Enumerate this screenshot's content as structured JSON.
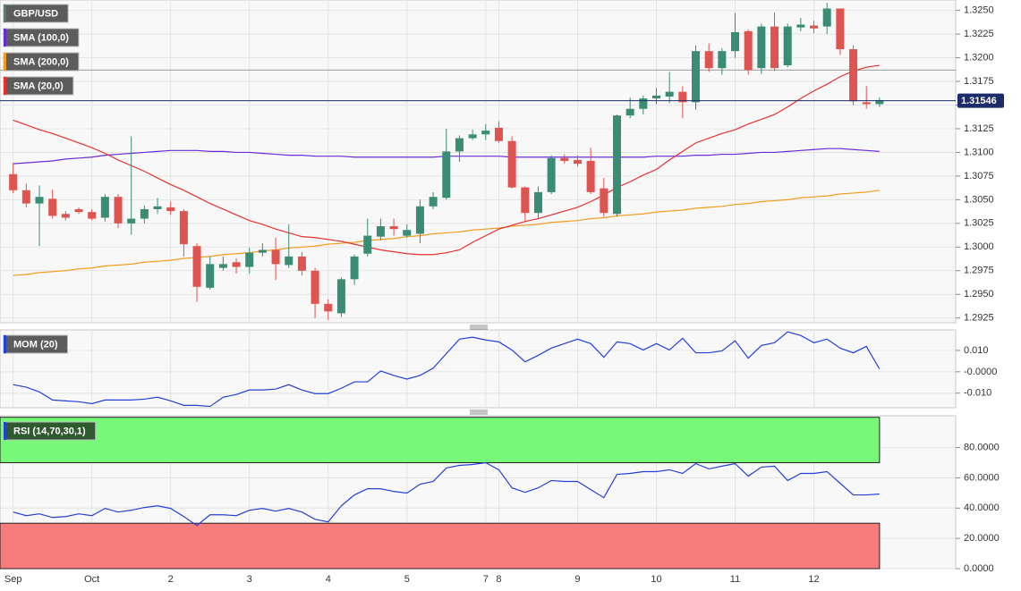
{
  "chart_data": [
    {
      "type": "candlestick",
      "name": "GBP/USD",
      "categories": [
        "Sep",
        null,
        null,
        null,
        null,
        null,
        "Oct",
        null,
        null,
        null,
        null,
        null,
        "2",
        null,
        null,
        null,
        null,
        null,
        "3",
        null,
        null,
        null,
        null,
        null,
        "4",
        null,
        null,
        null,
        null,
        null,
        "5",
        null,
        null,
        null,
        null,
        null,
        "7",
        "8",
        null,
        null,
        null,
        null,
        null,
        "9",
        null,
        null,
        null,
        null,
        null,
        "10",
        null,
        null,
        null,
        null,
        null,
        "11",
        null,
        null,
        null,
        null,
        null,
        "12",
        null,
        null,
        null,
        null,
        null
      ],
      "open": [
        1.3077,
        1.306,
        1.3046,
        1.3051,
        1.3035,
        1.304,
        1.3037,
        1.3031,
        1.3053,
        1.3025,
        1.303,
        1.304,
        1.3042,
        1.3038,
        1.3001,
        1.2957,
        1.2978,
        1.2984,
        1.2979,
        1.2994,
        1.2997,
        1.2981,
        1.299,
        1.2975,
        1.294,
        1.293,
        1.2966,
        1.2993,
        1.3011,
        1.3022,
        1.3012,
        1.3014,
        1.3043,
        1.3052,
        1.3101,
        1.3115,
        1.3119,
        1.3126,
        1.3112,
        1.3063,
        1.3036,
        1.3058,
        1.3094,
        1.3092,
        1.3091,
        1.3062,
        1.3035,
        1.3139,
        1.3146,
        1.3157,
        1.3159,
        1.3164,
        1.3153,
        1.3207,
        1.3189,
        1.3207,
        1.3228,
        1.3189,
        1.3233,
        1.3192,
        1.3232,
        1.3234,
        1.3233,
        1.3252,
        1.3209,
        1.3153,
        1.3151
      ],
      "high": [
        1.3089,
        1.3067,
        1.3065,
        1.3061,
        1.3038,
        1.3042,
        1.304,
        1.3056,
        1.3056,
        1.3117,
        1.3044,
        1.3052,
        1.3048,
        1.304,
        1.3004,
        1.299,
        1.299,
        1.2988,
        1.2999,
        1.3004,
        1.301,
        1.3024,
        1.2995,
        1.2978,
        1.2945,
        1.2968,
        1.2992,
        1.303,
        1.303,
        1.303,
        1.3024,
        1.305,
        1.3058,
        1.3125,
        1.3118,
        1.3124,
        1.313,
        1.3133,
        1.3117,
        1.3064,
        1.3064,
        1.3097,
        1.3098,
        1.3097,
        1.3105,
        1.3073,
        1.314,
        1.3158,
        1.316,
        1.3168,
        1.3185,
        1.317,
        1.3213,
        1.3215,
        1.321,
        1.3247,
        1.323,
        1.3236,
        1.3248,
        1.3236,
        1.3242,
        1.3239,
        1.3258,
        1.3252,
        1.3213,
        1.317,
        1.3158
      ],
      "low": [
        1.3057,
        1.3042,
        1.3001,
        1.303,
        1.3028,
        1.3035,
        1.3028,
        1.3027,
        1.302,
        1.3013,
        1.3025,
        1.3035,
        1.3034,
        1.299,
        1.2942,
        1.2955,
        1.2975,
        1.2972,
        1.2972,
        1.299,
        1.2965,
        1.2978,
        1.297,
        1.2925,
        1.2923,
        1.2926,
        1.296,
        1.299,
        1.3007,
        1.3012,
        1.301,
        1.3004,
        1.304,
        1.305,
        1.309,
        1.3113,
        1.3113,
        1.311,
        1.3062,
        1.3028,
        1.303,
        1.3056,
        1.3088,
        1.3085,
        1.3056,
        1.3032,
        1.3032,
        1.3136,
        1.314,
        1.3151,
        1.3152,
        1.3136,
        1.3145,
        1.3185,
        1.3182,
        1.32,
        1.3182,
        1.3183,
        1.3186,
        1.319,
        1.3228,
        1.3226,
        1.3225,
        1.3203,
        1.315,
        1.3146,
        1.3148
      ],
      "close": [
        1.306,
        1.3046,
        1.3053,
        1.3033,
        1.3031,
        1.3037,
        1.303,
        1.3053,
        1.3025,
        1.303,
        1.304,
        1.3043,
        1.3038,
        1.3003,
        1.2958,
        1.2982,
        1.2982,
        1.2979,
        1.2994,
        1.2997,
        1.2982,
        1.299,
        1.2975,
        1.294,
        1.2932,
        1.2966,
        1.299,
        1.3012,
        1.3022,
        1.3019,
        1.3018,
        1.3043,
        1.3053,
        1.3101,
        1.3115,
        1.3119,
        1.3123,
        1.3112,
        1.3063,
        1.3036,
        1.3058,
        1.3094,
        1.3091,
        1.3088,
        1.3058,
        1.3036,
        1.3139,
        1.3146,
        1.3157,
        1.316,
        1.3164,
        1.3153,
        1.3207,
        1.3189,
        1.3207,
        1.3227,
        1.3187,
        1.3233,
        1.3189,
        1.3233,
        1.3235,
        1.3231,
        1.3252,
        1.3209,
        1.3154,
        1.3151,
        1.3155
      ],
      "up_color": "#3b8c75",
      "down_color": "#dd5450",
      "name_color": "#5f7a6c",
      "series": [
        {
          "name": "SMA (100,0)",
          "color": "#6a2bd9",
          "values": [
            1.3088,
            1.3089,
            1.309,
            1.3091,
            1.3093,
            1.3094,
            1.3095,
            1.3097,
            1.3098,
            1.3099,
            1.31,
            1.3101,
            1.3102,
            1.3102,
            1.3102,
            1.3101,
            1.3101,
            1.31,
            1.31,
            1.3099,
            1.3098,
            1.3097,
            1.3097,
            1.3096,
            1.3096,
            1.3096,
            1.3095,
            1.3095,
            1.3095,
            1.3095,
            1.3095,
            1.3095,
            1.3095,
            1.3096,
            1.3096,
            1.3096,
            1.3096,
            1.3096,
            1.3095,
            1.3095,
            1.3095,
            1.3095,
            1.3095,
            1.3095,
            1.3095,
            1.3095,
            1.3095,
            1.3095,
            1.3095,
            1.3096,
            1.3096,
            1.3096,
            1.3097,
            1.3097,
            1.3098,
            1.3098,
            1.3099,
            1.31,
            1.31,
            1.3101,
            1.3102,
            1.3103,
            1.3104,
            1.3104,
            1.3103,
            1.3102,
            1.3101
          ]
        },
        {
          "name": "SMA (200,0)",
          "color": "#f39c1f",
          "values": [
            1.297,
            1.2971,
            1.2973,
            1.2974,
            1.2975,
            1.2977,
            1.2978,
            1.298,
            1.2981,
            1.2982,
            1.2984,
            1.2985,
            1.2986,
            1.2988,
            1.2989,
            1.299,
            1.2992,
            1.2993,
            1.2994,
            1.2996,
            1.2997,
            1.2999,
            1.3,
            1.3001,
            1.3003,
            1.3004,
            1.3005,
            1.3007,
            1.3008,
            1.3009,
            1.3011,
            1.3012,
            1.3014,
            1.3015,
            1.3016,
            1.3018,
            1.3019,
            1.302,
            1.3022,
            1.3023,
            1.3024,
            1.3026,
            1.3027,
            1.3028,
            1.303,
            1.3031,
            1.3033,
            1.3034,
            1.3035,
            1.3037,
            1.3038,
            1.3039,
            1.3041,
            1.3042,
            1.3043,
            1.3045,
            1.3046,
            1.3048,
            1.3049,
            1.305,
            1.3052,
            1.3053,
            1.3054,
            1.3056,
            1.3057,
            1.3058,
            1.306
          ]
        },
        {
          "name": "SMA (20,0)",
          "color": "#e8302c",
          "values": [
            1.3134,
            1.3129,
            1.3124,
            1.312,
            1.3115,
            1.311,
            1.3105,
            1.3099,
            1.3092,
            1.3086,
            1.308,
            1.3073,
            1.3066,
            1.306,
            1.3053,
            1.3046,
            1.304,
            1.3034,
            1.3028,
            1.3024,
            1.3019,
            1.3015,
            1.3011,
            1.301,
            1.3008,
            1.3006,
            1.3003,
            1.3,
            1.2997,
            1.2995,
            1.2993,
            1.2992,
            1.2992,
            1.2994,
            1.2997,
            1.3005,
            1.3012,
            1.3019,
            1.3023,
            1.3027,
            1.303,
            1.3034,
            1.3038,
            1.3042,
            1.3048,
            1.3055,
            1.3063,
            1.3069,
            1.3076,
            1.3082,
            1.3092,
            1.3101,
            1.311,
            1.3115,
            1.312,
            1.3124,
            1.313,
            1.3135,
            1.314,
            1.3148,
            1.3157,
            1.3165,
            1.3172,
            1.318,
            1.3186,
            1.319,
            1.3192
          ]
        }
      ],
      "last_price": 1.31546,
      "last_price_color": "#1c2b6b",
      "reference_lines": [
        1.3187
      ],
      "ylim": [
        1.292,
        1.3261
      ],
      "yticks": [
        {
          "value": 1.325,
          "label": "1.3250"
        },
        1.3225,
        {
          "value": 1.32,
          "label": "1.3200"
        },
        1.3175,
        {
          "value": 1.315,
          "label": "1.3150"
        },
        1.3125,
        {
          "value": 1.31,
          "label": "1.3100"
        },
        1.3075,
        {
          "value": 1.305,
          "label": "1.3050"
        },
        1.3025,
        {
          "value": 1.3,
          "label": "1.3000"
        },
        1.2975,
        {
          "value": 1.295,
          "label": "1.2950"
        },
        1.2925
      ],
      "grid": true
    },
    {
      "type": "line",
      "series": [
        {
          "name": "MOM (20)",
          "color": "#2340d8",
          "values": [
            -0.006,
            -0.0072,
            -0.0094,
            -0.0132,
            -0.0136,
            -0.014,
            -0.0149,
            -0.0132,
            -0.0132,
            -0.0132,
            -0.0128,
            -0.0119,
            -0.0136,
            -0.0157,
            -0.0157,
            -0.0162,
            -0.0119,
            -0.0106,
            -0.0085,
            -0.0085,
            -0.0081,
            -0.006,
            -0.0085,
            -0.0102,
            -0.0102,
            -0.0077,
            -0.0047,
            -0.0047,
            0.0004,
            -0.0017,
            -0.0034,
            -0.0017,
            0.0017,
            0.0085,
            0.0153,
            0.0162,
            0.0149,
            0.014,
            0.0102,
            0.0047,
            0.0077,
            0.0111,
            0.0132,
            0.0153,
            0.0132,
            0.0068,
            0.014,
            0.0132,
            0.0102,
            0.0132,
            0.0102,
            0.0157,
            0.0089,
            0.0089,
            0.0098,
            0.0145,
            0.0064,
            0.0123,
            0.0136,
            0.0187,
            0.017,
            0.0136,
            0.0153,
            0.0111,
            0.0089,
            0.0119,
            0.0013
          ]
        }
      ],
      "ylim": [
        -0.0168,
        0.0196
      ],
      "yticks": [
        {
          "value": 0.01,
          "label": "0.010"
        },
        {
          "value": 0,
          "label": "-0.0000"
        },
        {
          "value": -0.01,
          "label": "-0.010"
        }
      ],
      "grid": true
    },
    {
      "type": "line",
      "series": [
        {
          "name": "RSI (14,70,30,1)",
          "color": "#2340d8",
          "values": [
            37.4,
            35.0,
            36.2,
            33.8,
            34.4,
            36.2,
            35.0,
            39.8,
            37.4,
            38.6,
            40.4,
            41.5,
            39.8,
            34.4,
            28.5,
            35.6,
            35.6,
            35.0,
            38.6,
            39.8,
            38.0,
            39.8,
            37.4,
            32.6,
            30.9,
            41.5,
            48.7,
            52.8,
            52.8,
            51.0,
            49.9,
            55.8,
            57.6,
            66.5,
            68.2,
            68.8,
            70.0,
            65.3,
            53.4,
            50.4,
            53.4,
            58.2,
            57.6,
            57.6,
            52.2,
            46.9,
            62.3,
            62.9,
            64.1,
            64.1,
            65.3,
            62.9,
            69.4,
            65.9,
            67.7,
            69.4,
            61.1,
            67.1,
            67.7,
            58.2,
            62.9,
            62.9,
            64.1,
            56.4,
            48.7,
            48.7,
            49.3
          ]
        }
      ],
      "bands": [
        {
          "from": 70,
          "to": 100,
          "color": "#78f878"
        },
        {
          "from": 0,
          "to": 30,
          "color": "#f77b7b"
        }
      ],
      "name_color": "#2f5a2f",
      "ylim": [
        0,
        101
      ],
      "yticks": [
        {
          "value": 80,
          "label": "80.0000"
        },
        {
          "value": 60,
          "label": "60.0000"
        },
        {
          "value": 40,
          "label": "40.0000"
        },
        {
          "value": 20,
          "label": "20.0000"
        },
        {
          "value": 0,
          "label": "0.0000"
        }
      ],
      "grid": true
    }
  ]
}
